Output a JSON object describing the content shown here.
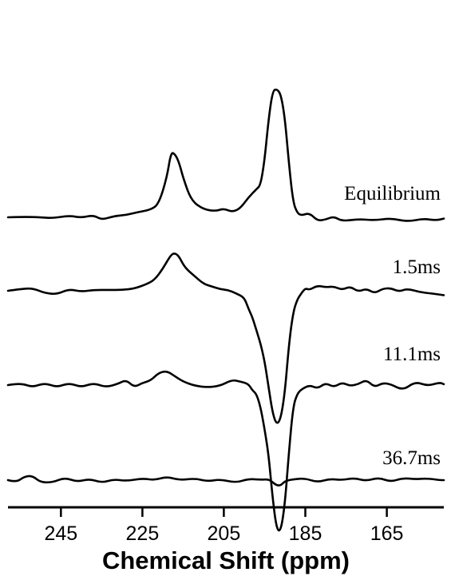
{
  "chart_data": {
    "type": "line",
    "xlabel": "Chemical Shift (ppm)",
    "ylabel": "",
    "x_reversed": true,
    "xlim": [
      258,
      151
    ],
    "xticks": [
      245,
      225,
      205,
      185,
      165
    ],
    "grid": false,
    "series": [
      {
        "name": "Equilibrium",
        "points": [
          [
            258,
            0.0
          ],
          [
            254,
            0.01
          ],
          [
            250,
            0.0
          ],
          [
            247,
            -0.02
          ],
          [
            243,
            0.04
          ],
          [
            240,
            -0.01
          ],
          [
            237,
            0.05
          ],
          [
            235,
            -0.06
          ],
          [
            232,
            0.03
          ],
          [
            229,
            0.05
          ],
          [
            226,
            0.12
          ],
          [
            223,
            0.17
          ],
          [
            221,
            0.3
          ],
          [
            219,
            0.9
          ],
          [
            218,
            1.48
          ],
          [
            217,
            1.44
          ],
          [
            216,
            1.25
          ],
          [
            215,
            0.9
          ],
          [
            213,
            0.38
          ],
          [
            210,
            0.18
          ],
          [
            207,
            0.14
          ],
          [
            205,
            0.2
          ],
          [
            203,
            0.12
          ],
          [
            201,
            0.2
          ],
          [
            199,
            0.45
          ],
          [
            197,
            0.64
          ],
          [
            196,
            0.73
          ],
          [
            195,
            1.3
          ],
          [
            194,
            2.25
          ],
          [
            193,
            2.88
          ],
          [
            192,
            2.92
          ],
          [
            191,
            2.8
          ],
          [
            190,
            2.25
          ],
          [
            189,
            1.2
          ],
          [
            188,
            0.35
          ],
          [
            187,
            0.1
          ],
          [
            186,
            0.04
          ],
          [
            184,
            0.1
          ],
          [
            182,
            -0.08
          ],
          [
            180,
            -0.05
          ],
          [
            178,
            0.02
          ],
          [
            176,
            -0.09
          ],
          [
            172,
            -0.04
          ],
          [
            168,
            -0.07
          ],
          [
            164,
            -0.02
          ],
          [
            160,
            -0.1
          ],
          [
            156,
            -0.03
          ],
          [
            153,
            -0.07
          ],
          [
            151,
            -0.03
          ]
        ]
      },
      {
        "name": "1.5ms",
        "points": [
          [
            258,
            0.0
          ],
          [
            255,
            0.04
          ],
          [
            252,
            0.06
          ],
          [
            249,
            -0.05
          ],
          [
            246,
            -0.08
          ],
          [
            243,
            0.04
          ],
          [
            240,
            -0.02
          ],
          [
            237,
            0.02
          ],
          [
            233,
            0.02
          ],
          [
            230,
            0.02
          ],
          [
            227,
            0.05
          ],
          [
            224,
            0.15
          ],
          [
            222,
            0.25
          ],
          [
            220,
            0.5
          ],
          [
            218,
            0.82
          ],
          [
            217,
            0.86
          ],
          [
            216,
            0.78
          ],
          [
            215,
            0.6
          ],
          [
            214,
            0.48
          ],
          [
            212,
            0.32
          ],
          [
            210,
            0.16
          ],
          [
            208,
            0.1
          ],
          [
            206,
            0.04
          ],
          [
            204,
            0.02
          ],
          [
            202,
            -0.06
          ],
          [
            200,
            -0.15
          ],
          [
            199,
            -0.4
          ],
          [
            198,
            -0.6
          ],
          [
            197,
            -0.9
          ],
          [
            196,
            -1.2
          ],
          [
            195,
            -1.6
          ],
          [
            194,
            -2.2
          ],
          [
            193,
            -2.8
          ],
          [
            192,
            -3.05
          ],
          [
            191,
            -2.9
          ],
          [
            190,
            -2.3
          ],
          [
            189,
            -1.2
          ],
          [
            188,
            -0.5
          ],
          [
            187,
            -0.2
          ],
          [
            186,
            -0.06
          ],
          [
            185,
            0.06
          ],
          [
            184,
            0.02
          ],
          [
            182,
            0.12
          ],
          [
            180,
            0.08
          ],
          [
            178,
            0.1
          ],
          [
            176,
            0.02
          ],
          [
            174,
            0.1
          ],
          [
            172,
            -0.02
          ],
          [
            170,
            0.05
          ],
          [
            168,
            -0.06
          ],
          [
            166,
            0.05
          ],
          [
            164,
            0.06
          ],
          [
            162,
            -0.02
          ],
          [
            160,
            0.05
          ],
          [
            157,
            -0.03
          ],
          [
            154,
            -0.06
          ],
          [
            151,
            -0.1
          ]
        ]
      },
      {
        "name": "11.1ms",
        "points": [
          [
            258,
            0.0
          ],
          [
            255,
            0.05
          ],
          [
            252,
            -0.05
          ],
          [
            249,
            0.05
          ],
          [
            246,
            -0.05
          ],
          [
            243,
            0.05
          ],
          [
            240,
            -0.05
          ],
          [
            237,
            0.05
          ],
          [
            234,
            -0.05
          ],
          [
            231,
            0.03
          ],
          [
            229,
            0.12
          ],
          [
            227,
            -0.05
          ],
          [
            225,
            0.05
          ],
          [
            223,
            0.1
          ],
          [
            221,
            0.28
          ],
          [
            219,
            0.32
          ],
          [
            217,
            0.2
          ],
          [
            215,
            0.08
          ],
          [
            212,
            -0.02
          ],
          [
            209,
            -0.05
          ],
          [
            206,
            -0.02
          ],
          [
            203,
            0.12
          ],
          [
            201,
            0.08
          ],
          [
            199,
            0.03
          ],
          [
            198,
            -0.12
          ],
          [
            197,
            -0.2
          ],
          [
            196,
            -0.5
          ],
          [
            195,
            -1.0
          ],
          [
            194,
            -1.6
          ],
          [
            193,
            -2.6
          ],
          [
            192,
            -3.3
          ],
          [
            191,
            -3.32
          ],
          [
            190,
            -2.7
          ],
          [
            189,
            -1.5
          ],
          [
            188,
            -0.5
          ],
          [
            187,
            -0.2
          ],
          [
            186,
            -0.1
          ],
          [
            184,
            0.0
          ],
          [
            182,
            -0.08
          ],
          [
            180,
            0.05
          ],
          [
            178,
            -0.05
          ],
          [
            176,
            0.06
          ],
          [
            174,
            -0.02
          ],
          [
            172,
            0.02
          ],
          [
            170,
            0.12
          ],
          [
            168,
            -0.05
          ],
          [
            166,
            0.05
          ],
          [
            164,
            0.02
          ],
          [
            161,
            -0.12
          ],
          [
            158,
            0.08
          ],
          [
            155,
            -0.02
          ],
          [
            152,
            0.06
          ],
          [
            151,
            0.02
          ]
        ]
      },
      {
        "name": "36.7ms",
        "points": [
          [
            258,
            0.0
          ],
          [
            256,
            -0.05
          ],
          [
            254,
            0.08
          ],
          [
            252,
            0.1
          ],
          [
            250,
            -0.05
          ],
          [
            247,
            -0.05
          ],
          [
            244,
            0.06
          ],
          [
            241,
            -0.04
          ],
          [
            238,
            0.03
          ],
          [
            235,
            -0.06
          ],
          [
            232,
            0.02
          ],
          [
            229,
            -0.02
          ],
          [
            225,
            0.04
          ],
          [
            222,
            0.0
          ],
          [
            219,
            0.08
          ],
          [
            216,
            0.0
          ],
          [
            212,
            0.04
          ],
          [
            209,
            -0.03
          ],
          [
            206,
            0.02
          ],
          [
            202,
            -0.06
          ],
          [
            199,
            0.03
          ],
          [
            196,
            0.01
          ],
          [
            194,
            0.02
          ],
          [
            193,
            -0.05
          ],
          [
            192,
            -0.12
          ],
          [
            191,
            -0.12
          ],
          [
            190,
            -0.02
          ],
          [
            188,
            0.02
          ],
          [
            185,
            0.04
          ],
          [
            182,
            -0.05
          ],
          [
            179,
            0.03
          ],
          [
            176,
            0.0
          ],
          [
            173,
            0.05
          ],
          [
            170,
            -0.02
          ],
          [
            167,
            0.06
          ],
          [
            164,
            -0.04
          ],
          [
            161,
            0.05
          ],
          [
            158,
            0.02
          ],
          [
            155,
            0.04
          ],
          [
            152,
            0.0
          ],
          [
            151,
            0.0
          ]
        ]
      }
    ]
  }
}
